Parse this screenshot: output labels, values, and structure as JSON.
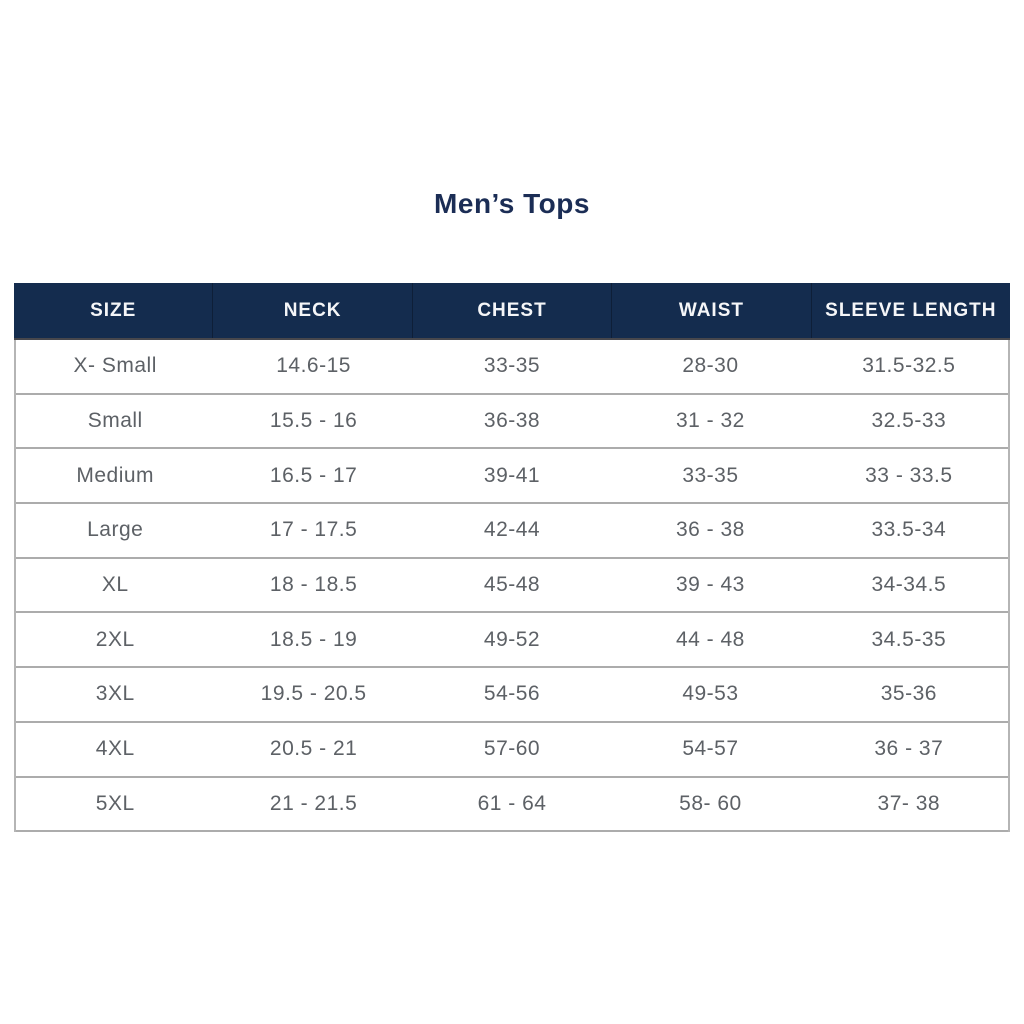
{
  "page": {
    "title": "Men’s Tops"
  },
  "colors": {
    "header_bg": "#142c4e",
    "title_text": "#1b2d55",
    "body_text": "#5d6166",
    "row_border": "#acacac",
    "header_bottom_border": "#47474c"
  },
  "table": {
    "columns": [
      "SIZE",
      "NECK",
      "CHEST",
      "WAIST",
      "SLEEVE LENGTH"
    ],
    "rows": [
      [
        "X- Small",
        "14.6-15",
        "33-35",
        "28-30",
        "31.5-32.5"
      ],
      [
        "Small",
        "15.5 - 16",
        "36-38",
        "31 - 32",
        "32.5-33"
      ],
      [
        "Medium",
        "16.5 - 17",
        "39-41",
        "33-35",
        "33 - 33.5"
      ],
      [
        "Large",
        "17 - 17.5",
        "42-44",
        "36 - 38",
        "33.5-34"
      ],
      [
        "XL",
        "18 - 18.5",
        "45-48",
        "39 - 43",
        "34-34.5"
      ],
      [
        "2XL",
        "18.5 - 19",
        "49-52",
        "44 - 48",
        "34.5-35"
      ],
      [
        "3XL",
        "19.5 - 20.5",
        "54-56",
        "49-53",
        "35-36"
      ],
      [
        "4XL",
        "20.5 - 21",
        "57-60",
        "54-57",
        "36 - 37"
      ],
      [
        "5XL",
        "21 - 21.5",
        "61 - 64",
        "58- 60",
        "37- 38"
      ]
    ]
  }
}
